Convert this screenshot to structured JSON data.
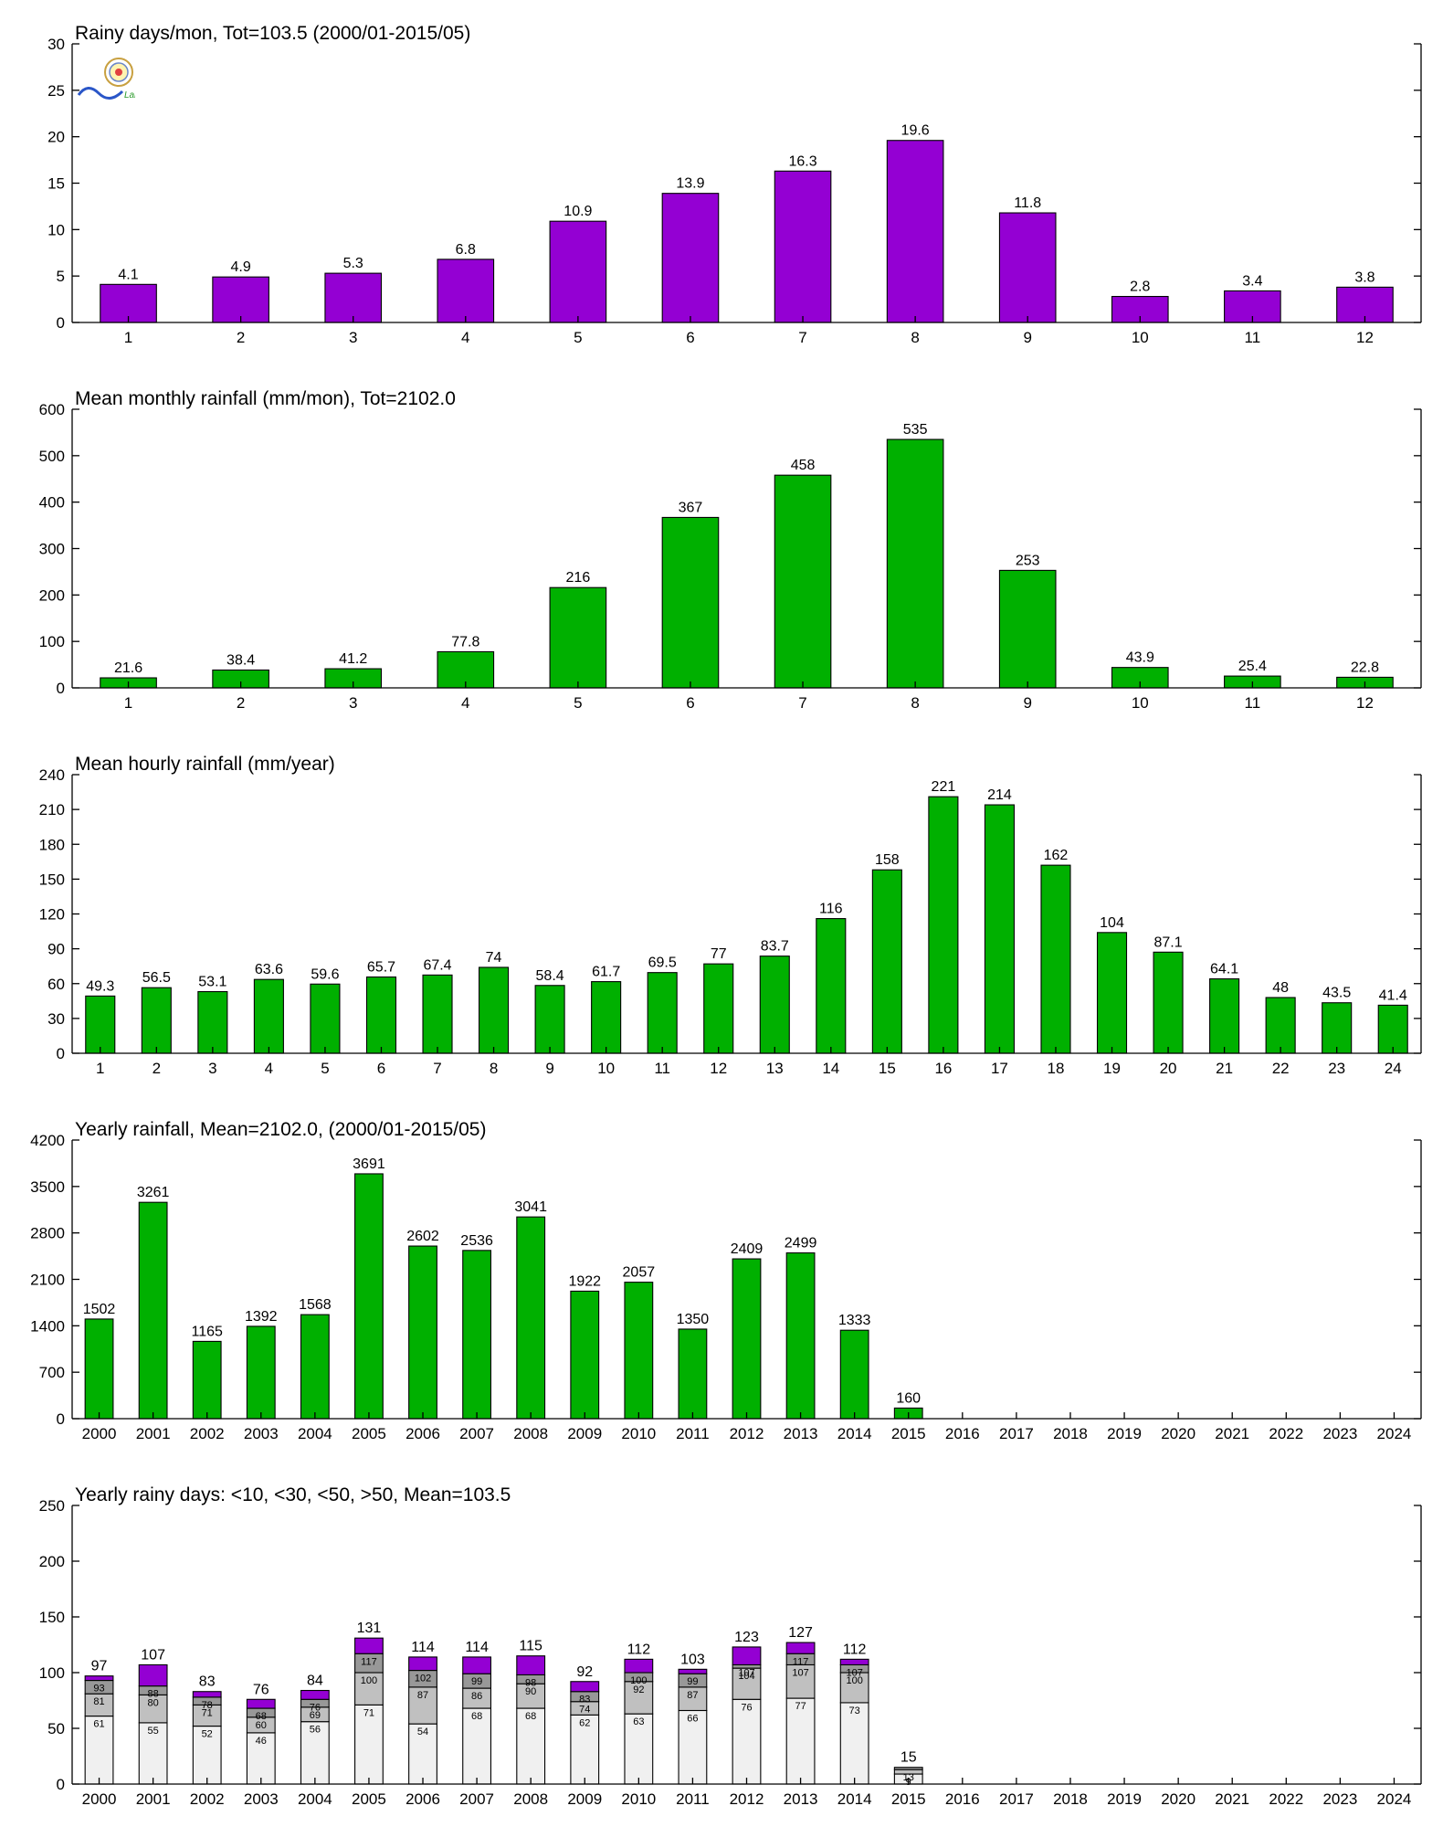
{
  "colors": {
    "purple": "#9400D3",
    "green": "#00B000",
    "seg_lt10": "#F0F0F0",
    "seg_lt30": "#C0C0C0",
    "seg_lt50": "#989898",
    "seg_gt50": "#9400D3"
  },
  "logo": {
    "icon": "lab-logo-icon",
    "text": "Lab"
  },
  "chart_data": [
    {
      "type": "bar",
      "title": "Rainy days/mon, Tot=103.5 (2000/01-2015/05)",
      "color": "purple",
      "ylim": [
        0,
        30
      ],
      "yticks": [
        0,
        5,
        10,
        15,
        20,
        25,
        30
      ],
      "categories": [
        "1",
        "2",
        "3",
        "4",
        "5",
        "6",
        "7",
        "8",
        "9",
        "10",
        "11",
        "12"
      ],
      "values": [
        4.1,
        4.9,
        5.3,
        6.8,
        10.9,
        13.9,
        16.3,
        19.6,
        11.8,
        2.8,
        3.4,
        3.8
      ],
      "labels": [
        "4.1",
        "4.9",
        "5.3",
        "6.8",
        "10.9",
        "13.9",
        "16.3",
        "19.6",
        "11.8",
        "2.8",
        "3.4",
        "3.8"
      ]
    },
    {
      "type": "bar",
      "title": "Mean monthly rainfall (mm/mon), Tot=2102.0",
      "color": "green",
      "ylim": [
        0,
        600
      ],
      "yticks": [
        0,
        100,
        200,
        300,
        400,
        500,
        600
      ],
      "categories": [
        "1",
        "2",
        "3",
        "4",
        "5",
        "6",
        "7",
        "8",
        "9",
        "10",
        "11",
        "12"
      ],
      "values": [
        21.6,
        38.4,
        41.2,
        77.8,
        216,
        367,
        458,
        535,
        253,
        43.9,
        25.4,
        22.8
      ],
      "labels": [
        "21.6",
        "38.4",
        "41.2",
        "77.8",
        "216",
        "367",
        "458",
        "535",
        "253",
        "43.9",
        "25.4",
        "22.8"
      ]
    },
    {
      "type": "bar",
      "title": "Mean hourly rainfall (mm/year)",
      "color": "green",
      "ylim": [
        0,
        240
      ],
      "yticks": [
        0,
        30,
        60,
        90,
        120,
        150,
        180,
        210,
        240
      ],
      "categories": [
        "1",
        "2",
        "3",
        "4",
        "5",
        "6",
        "7",
        "8",
        "9",
        "10",
        "11",
        "12",
        "13",
        "14",
        "15",
        "16",
        "17",
        "18",
        "19",
        "20",
        "21",
        "22",
        "23",
        "24"
      ],
      "values": [
        49.3,
        56.5,
        53.1,
        63.6,
        59.6,
        65.7,
        67.4,
        74,
        58.4,
        61.7,
        69.5,
        77,
        83.7,
        116,
        158,
        221,
        214,
        162,
        104,
        87.1,
        64.1,
        48,
        43.5,
        41.4
      ],
      "labels": [
        "49.3",
        "56.5",
        "53.1",
        "63.6",
        "59.6",
        "65.7",
        "67.4",
        "74",
        "58.4",
        "61.7",
        "69.5",
        "77",
        "83.7",
        "116",
        "158",
        "221",
        "214",
        "162",
        "104",
        "87.1",
        "64.1",
        "48",
        "43.5",
        "41.4"
      ]
    },
    {
      "type": "bar",
      "title": "Yearly rainfall, Mean=2102.0, (2000/01-2015/05)",
      "color": "green",
      "ylim": [
        0,
        4200
      ],
      "yticks": [
        0,
        700,
        1400,
        2100,
        2800,
        3500,
        4200
      ],
      "categories": [
        "2000",
        "2001",
        "2002",
        "2003",
        "2004",
        "2005",
        "2006",
        "2007",
        "2008",
        "2009",
        "2010",
        "2011",
        "2012",
        "2013",
        "2014",
        "2015",
        "2016",
        "2017",
        "2018",
        "2019",
        "2020",
        "2021",
        "2022",
        "2023",
        "2024"
      ],
      "values": [
        1502,
        3261,
        1165,
        1392,
        1568,
        3691,
        2602,
        2536,
        3041,
        1922,
        2057,
        1350,
        2409,
        2499,
        1333,
        160,
        null,
        null,
        null,
        null,
        null,
        null,
        null,
        null,
        null
      ],
      "labels": [
        "1502",
        "3261",
        "1165",
        "1392",
        "1568",
        "3691",
        "2602",
        "2536",
        "3041",
        "1922",
        "2057",
        "1350",
        "2409",
        "2499",
        "1333",
        "160",
        "",
        "",
        "",
        "",
        "",
        "",
        "",
        "",
        ""
      ]
    },
    {
      "type": "bar",
      "stacked": true,
      "title": "Yearly rainy days: <10, <30, <50, >50, Mean=103.5",
      "ylim": [
        0,
        250
      ],
      "yticks": [
        0,
        50,
        100,
        150,
        200,
        250
      ],
      "categories": [
        "2000",
        "2001",
        "2002",
        "2003",
        "2004",
        "2005",
        "2006",
        "2007",
        "2008",
        "2009",
        "2010",
        "2011",
        "2012",
        "2013",
        "2014",
        "2015",
        "2016",
        "2017",
        "2018",
        "2019",
        "2020",
        "2021",
        "2022",
        "2023",
        "2024"
      ],
      "cumulative": {
        "lt10": [
          61,
          55,
          52,
          46,
          56,
          71,
          54,
          68,
          68,
          62,
          63,
          66,
          76,
          77,
          73,
          9,
          null,
          null,
          null,
          null,
          null,
          null,
          null,
          null,
          null
        ],
        "lt30": [
          81,
          80,
          71,
          60,
          69,
          100,
          87,
          86,
          90,
          74,
          92,
          87,
          104,
          107,
          100,
          13,
          null,
          null,
          null,
          null,
          null,
          null,
          null,
          null,
          null
        ],
        "lt50": [
          93,
          88,
          78,
          68,
          76,
          117,
          102,
          99,
          98,
          83,
          100,
          99,
          107,
          117,
          107,
          15,
          null,
          null,
          null,
          null,
          null,
          null,
          null,
          null,
          null
        ],
        "total": [
          97,
          107,
          83,
          76,
          84,
          131,
          114,
          114,
          115,
          92,
          112,
          103,
          123,
          127,
          112,
          15,
          null,
          null,
          null,
          null,
          null,
          null,
          null,
          null,
          null
        ]
      },
      "labels": {
        "lt10": [
          "61",
          "55",
          "52",
          "46",
          "56",
          "71",
          "54",
          "68",
          "68",
          "62",
          "63",
          "66",
          "76",
          "77",
          "73",
          "9",
          "",
          "",
          "",
          "",
          "",
          "",
          "",
          "",
          ""
        ],
        "lt30": [
          "81",
          "80",
          "71",
          "60",
          "69",
          "100",
          "87",
          "86",
          "90",
          "74",
          "92",
          "87",
          "104",
          "107",
          "100",
          "13",
          "",
          "",
          "",
          "",
          "",
          "",
          "",
          "",
          ""
        ],
        "lt50": [
          "93",
          "88",
          "78",
          "68",
          "76",
          "117",
          "102",
          "99",
          "98",
          "83",
          "100",
          "99",
          "107",
          "117",
          "107",
          "",
          "",
          "",
          "",
          "",
          "",
          "",
          "",
          "",
          ""
        ],
        "total": [
          "97",
          "107",
          "83",
          "76",
          "84",
          "131",
          "114",
          "114",
          "115",
          "92",
          "112",
          "103",
          "123",
          "127",
          "112",
          "15",
          "",
          "",
          "",
          "",
          "",
          "",
          "",
          "",
          ""
        ]
      }
    }
  ]
}
